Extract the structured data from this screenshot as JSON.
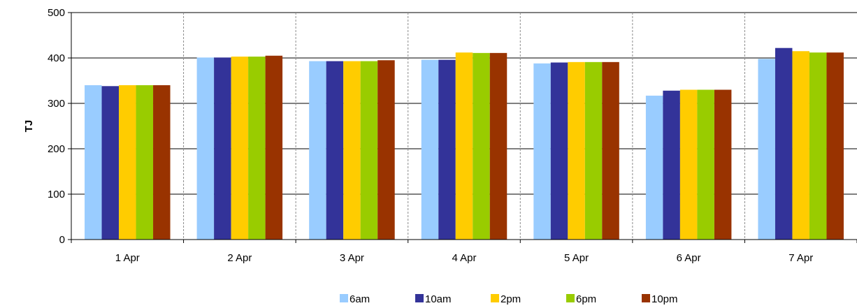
{
  "chart_data": {
    "type": "bar",
    "title": "",
    "xlabel": "",
    "ylabel": "TJ",
    "ylim": [
      0,
      500
    ],
    "yticks": [
      0,
      100,
      200,
      300,
      400,
      500
    ],
    "grid": "horizontal solid, vertical dashed between categories",
    "legend_position": "bottom",
    "categories": [
      "1 Apr",
      "2 Apr",
      "3 Apr",
      "4 Apr",
      "5 Apr",
      "6 Apr",
      "7 Apr"
    ],
    "series": [
      {
        "name": "6am",
        "color": "#99ccff",
        "values": [
          340,
          401,
          393,
          396,
          388,
          317,
          398
        ]
      },
      {
        "name": "10am",
        "color": "#333399",
        "values": [
          338,
          401,
          393,
          396,
          390,
          328,
          422
        ]
      },
      {
        "name": "2pm",
        "color": "#ffcc00",
        "values": [
          340,
          403,
          393,
          412,
          391,
          330,
          415
        ]
      },
      {
        "name": "6pm",
        "color": "#99cc00",
        "values": [
          340,
          403,
          393,
          411,
          391,
          330,
          412
        ]
      },
      {
        "name": "10pm",
        "color": "#993300",
        "values": [
          340,
          405,
          395,
          411,
          391,
          330,
          412
        ]
      }
    ]
  }
}
